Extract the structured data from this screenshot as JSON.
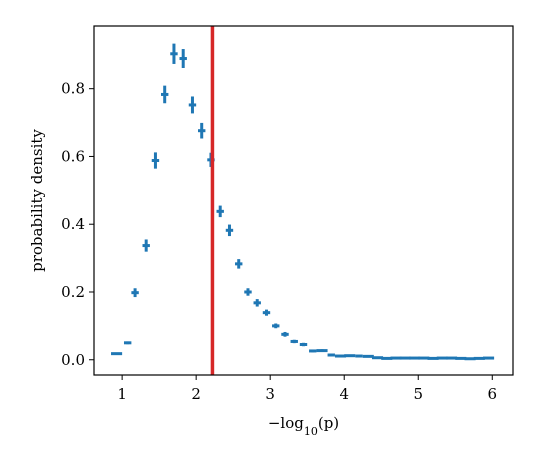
{
  "chart_data": {
    "type": "scatter",
    "xlabel": "−log₁₀(p)",
    "ylabel": "probability density",
    "xlim": [
      0.62,
      6.28
    ],
    "ylim": [
      -0.045,
      0.985
    ],
    "xticks": [
      1,
      2,
      3,
      4,
      5,
      6
    ],
    "yticks": [
      0.0,
      0.2,
      0.4,
      0.6,
      0.8
    ],
    "ytick_labels": [
      "0.0",
      "0.2",
      "0.4",
      "0.6",
      "0.8"
    ],
    "grid": false,
    "colors": {
      "points": "#1f77b4",
      "threshold_line": "#d62728"
    },
    "series": [
      {
        "x": [
          0.925,
          1.075,
          1.175,
          1.325,
          1.45,
          1.575,
          1.7,
          1.825,
          1.95,
          2.075,
          2.2,
          2.325,
          2.45,
          2.575,
          2.7,
          2.825,
          2.95,
          3.075,
          3.2,
          3.325,
          3.45,
          3.575,
          3.7,
          3.825,
          3.95,
          4.075,
          4.2,
          4.325,
          4.45,
          4.575,
          4.7,
          4.825,
          4.95,
          5.075,
          5.2,
          5.325,
          5.45,
          5.575,
          5.7,
          5.825,
          5.95
        ],
        "y": [
          0.018,
          0.05,
          0.198,
          0.337,
          0.588,
          0.783,
          0.903,
          0.889,
          0.752,
          0.676,
          0.59,
          0.438,
          0.382,
          0.283,
          0.2,
          0.168,
          0.139,
          0.1,
          0.075,
          0.054,
          0.045,
          0.026,
          0.027,
          0.014,
          0.011,
          0.012,
          0.011,
          0.01,
          0.006,
          0.004,
          0.005,
          0.005,
          0.005,
          0.005,
          0.004,
          0.005,
          0.005,
          0.004,
          0.003,
          0.004,
          0.005
        ],
        "xerr": [
          0.075,
          0.05,
          0.05,
          0.05,
          0.05,
          0.05,
          0.05,
          0.05,
          0.05,
          0.05,
          0.05,
          0.05,
          0.05,
          0.05,
          0.05,
          0.05,
          0.05,
          0.05,
          0.05,
          0.05,
          0.05,
          0.05,
          0.075,
          0.05,
          0.075,
          0.075,
          0.05,
          0.075,
          0.075,
          0.075,
          0.075,
          0.075,
          0.075,
          0.075,
          0.075,
          0.075,
          0.075,
          0.075,
          0.075,
          0.075,
          0.075
        ],
        "yerr": [
          0.003,
          0.004,
          0.013,
          0.018,
          0.024,
          0.026,
          0.03,
          0.028,
          0.025,
          0.023,
          0.021,
          0.017,
          0.017,
          0.014,
          0.011,
          0.011,
          0.009,
          0.007,
          0.007,
          0.005,
          0.005,
          0.004,
          0.004,
          0.003,
          0.003,
          0.003,
          0.003,
          0.003,
          0.003,
          0.002,
          0.002,
          0.002,
          0.002,
          0.002,
          0.002,
          0.002,
          0.002,
          0.002,
          0.002,
          0.002,
          0.002
        ]
      }
    ],
    "vlines": [
      {
        "x": 2.22
      }
    ]
  }
}
